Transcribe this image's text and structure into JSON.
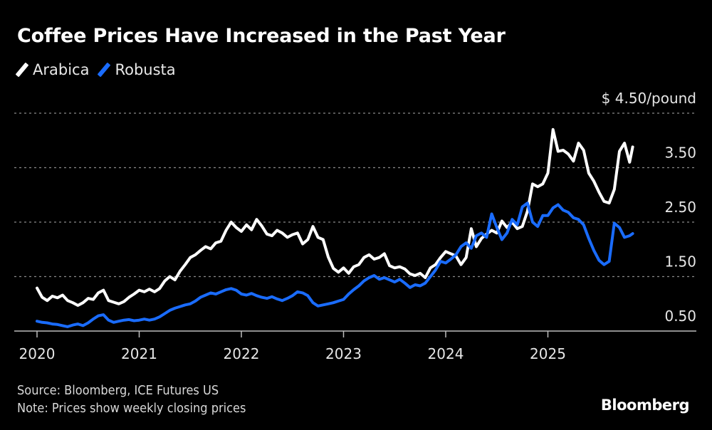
{
  "title": "Coffee Prices Have Increased in the Past Year",
  "legend": [
    {
      "name": "Arabica",
      "color": "#ffffff"
    },
    {
      "name": "Robusta",
      "color": "#1a6cff"
    }
  ],
  "source": "Source: Bloomberg, ICE Futures US",
  "note": "Note: Prices show weekly closing prices",
  "brand": "Bloomberg",
  "chart_data": {
    "type": "line",
    "title": "Coffee Prices Have Increased in the Past Year",
    "xlabel": "",
    "ylabel": "$/pound",
    "unit_label": "$ 4.50/pound",
    "ylim": [
      0.5,
      4.5
    ],
    "yticks": [
      0.5,
      1.5,
      2.5,
      3.5,
      4.5
    ],
    "ytick_labels": [
      "0.50",
      "1.50",
      "2.50",
      "3.50",
      "$ 4.50/pound"
    ],
    "xlim": [
      2020.0,
      2025.83
    ],
    "xticks": [
      2020,
      2021,
      2022,
      2023,
      2024,
      2025
    ],
    "xtick_labels": [
      "2020",
      "2021",
      "2022",
      "2023",
      "2024",
      "2025"
    ],
    "grid": true,
    "legend_position": "top-left",
    "series": [
      {
        "name": "Arabica",
        "color": "#ffffff",
        "x": [
          2020.0,
          2020.05,
          2020.1,
          2020.15,
          2020.2,
          2020.25,
          2020.3,
          2020.35,
          2020.4,
          2020.45,
          2020.5,
          2020.55,
          2020.6,
          2020.65,
          2020.7,
          2020.75,
          2020.8,
          2020.85,
          2020.9,
          2020.95,
          2021.0,
          2021.05,
          2021.1,
          2021.15,
          2021.2,
          2021.25,
          2021.3,
          2021.35,
          2021.4,
          2021.45,
          2021.5,
          2021.55,
          2021.6,
          2021.65,
          2021.7,
          2021.75,
          2021.8,
          2021.85,
          2021.9,
          2021.95,
          2022.0,
          2022.05,
          2022.1,
          2022.15,
          2022.2,
          2022.25,
          2022.3,
          2022.35,
          2022.4,
          2022.45,
          2022.5,
          2022.55,
          2022.6,
          2022.65,
          2022.7,
          2022.75,
          2022.8,
          2022.85,
          2022.9,
          2022.95,
          2023.0,
          2023.05,
          2023.1,
          2023.15,
          2023.2,
          2023.25,
          2023.3,
          2023.35,
          2023.4,
          2023.45,
          2023.5,
          2023.55,
          2023.6,
          2023.65,
          2023.7,
          2023.75,
          2023.8,
          2023.85,
          2023.9,
          2023.95,
          2024.0,
          2024.05,
          2024.1,
          2024.15,
          2024.2,
          2024.25,
          2024.3,
          2024.35,
          2024.4,
          2024.45,
          2024.5,
          2024.55,
          2024.6,
          2024.65,
          2024.7,
          2024.75,
          2024.8,
          2024.85,
          2024.9,
          2024.95,
          2025.0,
          2025.05,
          2025.1,
          2025.15,
          2025.2,
          2025.25,
          2025.3,
          2025.35,
          2025.4,
          2025.45,
          2025.5,
          2025.55,
          2025.6,
          2025.65,
          2025.7,
          2025.75,
          2025.8,
          2025.83
        ],
        "values": [
          1.29,
          1.12,
          1.06,
          1.14,
          1.11,
          1.16,
          1.06,
          1.02,
          0.97,
          1.02,
          1.1,
          1.08,
          1.2,
          1.25,
          1.06,
          1.03,
          1.0,
          1.04,
          1.12,
          1.18,
          1.25,
          1.22,
          1.27,
          1.22,
          1.28,
          1.42,
          1.5,
          1.44,
          1.6,
          1.72,
          1.85,
          1.9,
          1.98,
          2.05,
          2.01,
          2.12,
          2.15,
          2.35,
          2.5,
          2.4,
          2.33,
          2.45,
          2.36,
          2.55,
          2.43,
          2.28,
          2.25,
          2.35,
          2.3,
          2.22,
          2.27,
          2.3,
          2.1,
          2.18,
          2.42,
          2.22,
          2.18,
          1.86,
          1.65,
          1.58,
          1.66,
          1.56,
          1.68,
          1.72,
          1.85,
          1.9,
          1.82,
          1.85,
          1.92,
          1.7,
          1.66,
          1.68,
          1.64,
          1.55,
          1.52,
          1.56,
          1.48,
          1.66,
          1.72,
          1.85,
          1.96,
          1.92,
          1.88,
          1.72,
          1.85,
          2.38,
          2.05,
          2.2,
          2.28,
          2.35,
          2.3,
          2.52,
          2.4,
          2.5,
          2.38,
          2.42,
          2.7,
          3.2,
          3.15,
          3.2,
          3.4,
          4.2,
          3.8,
          3.82,
          3.75,
          3.62,
          3.95,
          3.82,
          3.4,
          3.25,
          3.05,
          2.88,
          2.85,
          3.1,
          3.8,
          3.95,
          3.6,
          3.88
        ]
      },
      {
        "name": "Robusta",
        "color": "#1a6cff",
        "x": [
          2020.0,
          2020.05,
          2020.1,
          2020.15,
          2020.2,
          2020.25,
          2020.3,
          2020.35,
          2020.4,
          2020.45,
          2020.5,
          2020.55,
          2020.6,
          2020.65,
          2020.7,
          2020.75,
          2020.8,
          2020.85,
          2020.9,
          2020.95,
          2021.0,
          2021.05,
          2021.1,
          2021.15,
          2021.2,
          2021.25,
          2021.3,
          2021.35,
          2021.4,
          2021.45,
          2021.5,
          2021.55,
          2021.6,
          2021.65,
          2021.7,
          2021.75,
          2021.8,
          2021.85,
          2021.9,
          2021.95,
          2022.0,
          2022.05,
          2022.1,
          2022.15,
          2022.2,
          2022.25,
          2022.3,
          2022.35,
          2022.4,
          2022.45,
          2022.5,
          2022.55,
          2022.6,
          2022.65,
          2022.7,
          2022.75,
          2022.8,
          2022.85,
          2022.9,
          2022.95,
          2023.0,
          2023.05,
          2023.1,
          2023.15,
          2023.2,
          2023.25,
          2023.3,
          2023.35,
          2023.4,
          2023.45,
          2023.5,
          2023.55,
          2023.6,
          2023.65,
          2023.7,
          2023.75,
          2023.8,
          2023.85,
          2023.9,
          2023.95,
          2024.0,
          2024.05,
          2024.1,
          2024.15,
          2024.2,
          2024.25,
          2024.3,
          2024.35,
          2024.4,
          2024.45,
          2024.5,
          2024.55,
          2024.6,
          2024.65,
          2024.7,
          2024.75,
          2024.8,
          2024.85,
          2024.9,
          2024.95,
          2025.0,
          2025.05,
          2025.1,
          2025.15,
          2025.2,
          2025.25,
          2025.3,
          2025.35,
          2025.4,
          2025.45,
          2025.5,
          2025.55,
          2025.6,
          2025.65,
          2025.7,
          2025.75,
          2025.8,
          2025.83
        ],
        "values": [
          0.68,
          0.66,
          0.65,
          0.63,
          0.62,
          0.6,
          0.58,
          0.61,
          0.63,
          0.6,
          0.65,
          0.72,
          0.78,
          0.8,
          0.7,
          0.66,
          0.68,
          0.7,
          0.71,
          0.69,
          0.7,
          0.72,
          0.7,
          0.72,
          0.76,
          0.82,
          0.88,
          0.92,
          0.95,
          0.98,
          1.0,
          1.05,
          1.12,
          1.16,
          1.2,
          1.18,
          1.22,
          1.26,
          1.28,
          1.25,
          1.18,
          1.16,
          1.19,
          1.15,
          1.12,
          1.1,
          1.13,
          1.09,
          1.06,
          1.1,
          1.15,
          1.22,
          1.2,
          1.15,
          1.02,
          0.96,
          0.98,
          1.0,
          1.02,
          1.05,
          1.08,
          1.18,
          1.26,
          1.33,
          1.42,
          1.48,
          1.52,
          1.45,
          1.48,
          1.44,
          1.4,
          1.45,
          1.38,
          1.3,
          1.35,
          1.33,
          1.38,
          1.5,
          1.62,
          1.78,
          1.75,
          1.82,
          1.9,
          2.05,
          2.12,
          2.02,
          2.25,
          2.3,
          2.22,
          2.65,
          2.4,
          2.18,
          2.3,
          2.55,
          2.45,
          2.78,
          2.85,
          2.5,
          2.42,
          2.62,
          2.62,
          2.76,
          2.82,
          2.72,
          2.68,
          2.58,
          2.55,
          2.45,
          2.2,
          1.98,
          1.8,
          1.72,
          1.78,
          2.48,
          2.4,
          2.22,
          2.25,
          2.29
        ]
      }
    ]
  }
}
